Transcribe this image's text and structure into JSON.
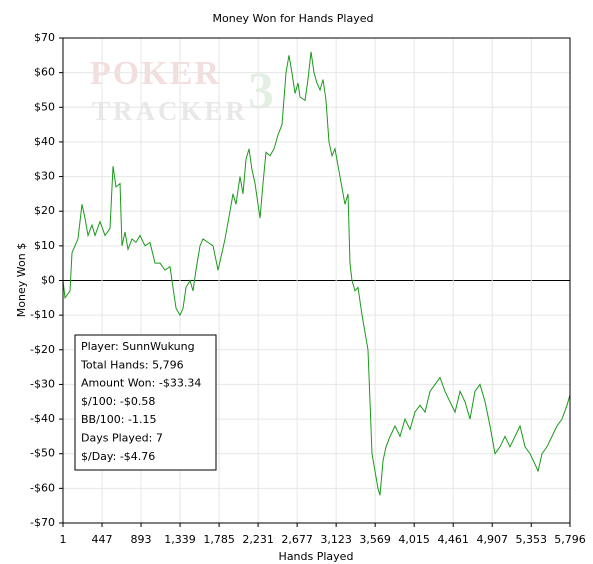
{
  "chart_data": {
    "type": "line",
    "title": "Money Won for Hands Played",
    "x_label": "Hands Played",
    "y_label": "Money Won $",
    "watermark": [
      "POKER",
      "TRACKER",
      "3"
    ],
    "color": "#1a9a1a",
    "grid": true,
    "xlim": [
      1,
      5796
    ],
    "ylim": [
      -70,
      70
    ],
    "xticks": [
      1,
      {
        "value": 447,
        "label": "447"
      },
      {
        "value": 893,
        "label": "893"
      },
      {
        "value": 1339,
        "label": "1,339"
      },
      {
        "value": 1785,
        "label": "1,785"
      },
      {
        "value": 2231,
        "label": "2,231"
      },
      {
        "value": 2677,
        "label": "2,677"
      },
      {
        "value": 3123,
        "label": "3,123"
      },
      {
        "value": 3569,
        "label": "3,569"
      },
      {
        "value": 4015,
        "label": "4,015"
      },
      {
        "value": 4461,
        "label": "4,461"
      },
      {
        "value": 4907,
        "label": "4,907"
      },
      {
        "value": 5353,
        "label": "5,353"
      },
      {
        "value": 5796,
        "label": "5,796"
      }
    ],
    "yticks": [
      {
        "value": -70,
        "label": "-$70"
      },
      {
        "value": -60,
        "label": "-$60"
      },
      {
        "value": -50,
        "label": "-$50"
      },
      {
        "value": -40,
        "label": "-$40"
      },
      {
        "value": -30,
        "label": "-$30"
      },
      {
        "value": -20,
        "label": "-$20"
      },
      {
        "value": -10,
        "label": "-$10"
      },
      {
        "value": 0,
        "label": "$0"
      },
      {
        "value": 10,
        "label": "$10"
      },
      {
        "value": 20,
        "label": "$20"
      },
      {
        "value": 30,
        "label": "$30"
      },
      {
        "value": 40,
        "label": "$40"
      },
      {
        "value": 50,
        "label": "$50"
      },
      {
        "value": 60,
        "label": "$60"
      },
      {
        "value": 70,
        "label": "$70"
      }
    ],
    "x": [
      1,
      24,
      81,
      104,
      138,
      172,
      218,
      252,
      287,
      332,
      367,
      424,
      481,
      538,
      573,
      607,
      653,
      675,
      710,
      744,
      790,
      835,
      881,
      938,
      995,
      1053,
      1110,
      1167,
      1224,
      1258,
      1293,
      1338,
      1373,
      1407,
      1453,
      1487,
      1521,
      1567,
      1601,
      1658,
      1716,
      1773,
      1818,
      1853,
      1910,
      1944,
      1978,
      2024,
      2058,
      2093,
      2127,
      2161,
      2196,
      2230,
      2253,
      2287,
      2321,
      2367,
      2413,
      2458,
      2504,
      2550,
      2584,
      2618,
      2653,
      2687,
      2710,
      2767,
      2801,
      2836,
      2870,
      2904,
      2939,
      2973,
      3007,
      3041,
      3076,
      3110,
      3167,
      3224,
      3259,
      3281,
      3304,
      3339,
      3373,
      3419,
      3453,
      3487,
      3533,
      3567,
      3601,
      3624,
      3659,
      3693,
      3739,
      3796,
      3853,
      3910,
      3967,
      4024,
      4082,
      4139,
      4196,
      4253,
      4310,
      4367,
      4424,
      4482,
      4539,
      4596,
      4653,
      4710,
      4767,
      4825,
      4882,
      4939,
      4996,
      5053,
      5110,
      5168,
      5225,
      5282,
      5339,
      5396,
      5431,
      5476,
      5533,
      5590,
      5647,
      5705,
      5762,
      5796
    ],
    "values": [
      0,
      -5,
      -3,
      8,
      10,
      12,
      22,
      18,
      13,
      16,
      13,
      17,
      13,
      15,
      33,
      27,
      28,
      10,
      14,
      9,
      12,
      11,
      13,
      10,
      11,
      5,
      5,
      3,
      4,
      -2,
      -8,
      -10,
      -8,
      -2,
      0,
      -3,
      3,
      10,
      12,
      11,
      10,
      3,
      8,
      12,
      20,
      25,
      22,
      30,
      25,
      35,
      38,
      32,
      28,
      22,
      18,
      28,
      37,
      36,
      38,
      42,
      45,
      60,
      65,
      60,
      54,
      57,
      53,
      52,
      58,
      66,
      60,
      57,
      55,
      58,
      52,
      40,
      36,
      38,
      30,
      22,
      25,
      5,
      0,
      -3,
      -2,
      -10,
      -15,
      -20,
      -50,
      -55,
      -60,
      -62,
      -52,
      -48,
      -45,
      -42,
      -45,
      -40,
      -43,
      -38,
      -36,
      -38,
      -32,
      -30,
      -28,
      -32,
      -35,
      -38,
      -32,
      -35,
      -40,
      -32,
      -30,
      -35,
      -42,
      -50,
      -48,
      -45,
      -48,
      -45,
      -42,
      -48,
      -50,
      -53,
      -55,
      -50,
      -48,
      -45,
      -42,
      -40,
      -36,
      -33
    ],
    "annotations": [
      "Player: SunnWukung",
      "Total Hands: 5,796",
      "Amount Won: -$33.34",
      "$/100: -$0.58",
      "BB/100: -1.15",
      "Days Played: 7",
      "$/Day: -$4.76"
    ]
  }
}
